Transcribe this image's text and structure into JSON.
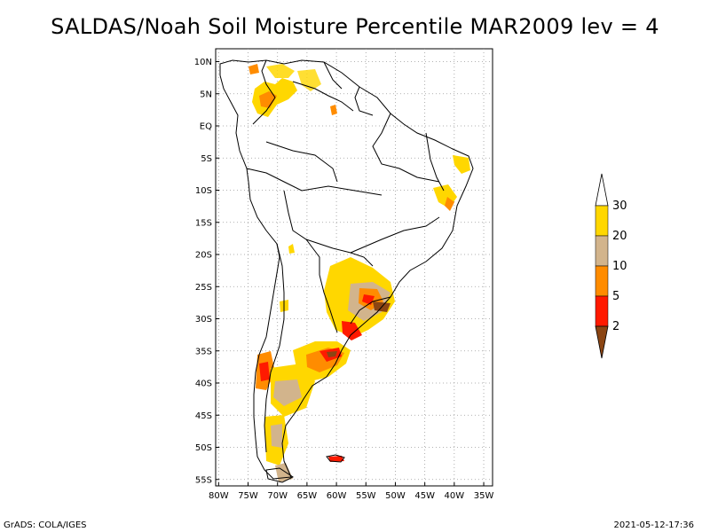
{
  "title": "SALDAS/Noah Soil Moisture Percentile MAR2009 lev = 4",
  "map": {
    "lat_ticks": [
      "10N",
      "5N",
      "EQ",
      "5S",
      "10S",
      "15S",
      "20S",
      "25S",
      "30S",
      "35S",
      "40S",
      "45S",
      "50S",
      "55S"
    ],
    "lon_ticks": [
      "80W",
      "75W",
      "70W",
      "65W",
      "60W",
      "55W",
      "50W",
      "45W",
      "40W",
      "35W"
    ],
    "grid": "dotted"
  },
  "legend": {
    "labels": [
      "2",
      "5",
      "10",
      "20",
      "30"
    ],
    "colors": [
      "#8b4513",
      "#ff1a00",
      "#ff8c00",
      "#d2b48c",
      "#ffd700",
      "#ffffff"
    ]
  },
  "footer": {
    "left": "GrADS: COLA/IGES",
    "right": "2021-05-12-17:36"
  }
}
